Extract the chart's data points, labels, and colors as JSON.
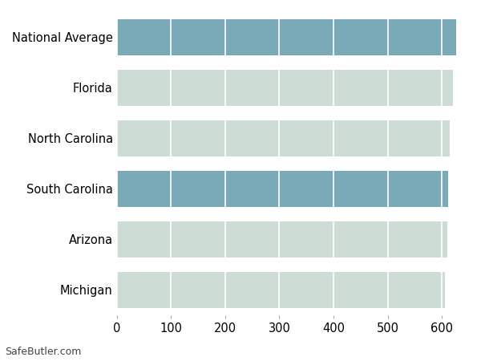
{
  "categories": [
    "National Average",
    "Florida",
    "North Carolina",
    "South Carolina",
    "Arizona",
    "Michigan"
  ],
  "values": [
    627,
    621,
    614,
    611,
    610,
    606
  ],
  "highlight_color": "#7aaab8",
  "default_color": "#cdddd5",
  "highlight_indices": [
    0,
    3
  ],
  "background_color": "#ffffff",
  "grid_color": "#ffffff",
  "bar_bg_color": "#f2f6f3",
  "xlabel": "",
  "ylabel": "",
  "xlim": [
    0,
    650
  ],
  "xticks": [
    0,
    100,
    200,
    300,
    400,
    500,
    600
  ],
  "footer_text": "SafeButler.com",
  "tick_fontsize": 10.5,
  "bar_height": 0.72
}
